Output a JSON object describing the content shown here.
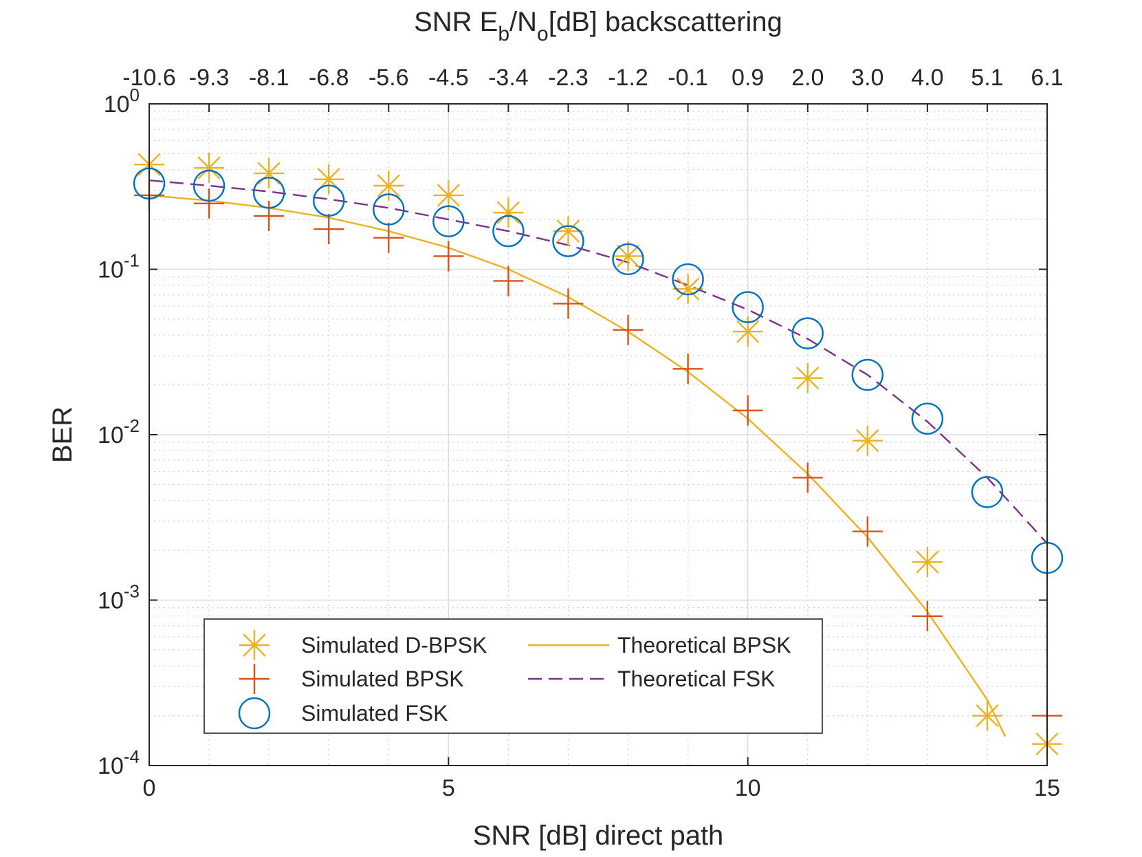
{
  "chart_data": {
    "type": "line",
    "title": "",
    "xlabel": "SNR [dB] direct path",
    "ylabel": "BER",
    "xlim": [
      0,
      15
    ],
    "ylim": [
      0.0001,
      1
    ],
    "yscale": "log",
    "grid": true,
    "legend_position": "bottom-left",
    "x_ticks": [
      0,
      5,
      10,
      15
    ],
    "y_ticks": [
      {
        "value": 1,
        "base": "10",
        "exp": "0"
      },
      {
        "value": 0.1,
        "base": "10",
        "exp": "-1"
      },
      {
        "value": 0.01,
        "base": "10",
        "exp": "-2"
      },
      {
        "value": 0.001,
        "base": "10",
        "exp": "-3"
      },
      {
        "value": 0.0001,
        "base": "10",
        "exp": "-4"
      }
    ],
    "top_axis": {
      "label_parts": [
        "SNR E",
        "b",
        "/N",
        "o",
        "[dB] backscattering"
      ],
      "tick_labels": [
        "-10.6",
        "-9.3",
        "-8.1",
        "-6.8",
        "-5.6",
        "-4.5",
        "-3.4",
        "-2.3",
        "-1.2",
        "-0.1",
        "0.9",
        "2.0",
        "3.0",
        "4.0",
        "5.1",
        "6.1"
      ]
    },
    "colors": {
      "dbpsk": "#EDB120",
      "bpsk": "#D95319",
      "fsk": "#0072BD",
      "theory_bpsk": "#EDB120",
      "theory_fsk": "#7E2F8E"
    },
    "series": [
      {
        "name": "Simulated D-BPSK",
        "marker": "star",
        "color": "#EDB120",
        "x": [
          0,
          1,
          2,
          3,
          4,
          5,
          6,
          7,
          8,
          9,
          10,
          11,
          12,
          13,
          14,
          15
        ],
        "values": [
          0.43,
          0.41,
          0.38,
          0.35,
          0.32,
          0.28,
          0.22,
          0.17,
          0.12,
          0.076,
          0.042,
          0.022,
          0.0092,
          0.0017,
          0.0002,
          0.000135
        ]
      },
      {
        "name": "Simulated BPSK",
        "marker": "plus",
        "color": "#D95319",
        "x": [
          0,
          1,
          2,
          3,
          4,
          5,
          6,
          7,
          8,
          9,
          10,
          11,
          12,
          13,
          15
        ],
        "values": [
          0.28,
          0.25,
          0.21,
          0.175,
          0.155,
          0.12,
          0.085,
          0.062,
          0.043,
          0.025,
          0.014,
          0.0055,
          0.0026,
          0.0008,
          0.0002
        ]
      },
      {
        "name": "Simulated FSK",
        "marker": "circle",
        "color": "#0072BD",
        "x": [
          0,
          1,
          2,
          3,
          4,
          5,
          6,
          7,
          8,
          9,
          10,
          11,
          12,
          13,
          14,
          15
        ],
        "values": [
          0.33,
          0.32,
          0.29,
          0.26,
          0.23,
          0.195,
          0.17,
          0.148,
          0.115,
          0.087,
          0.059,
          0.041,
          0.023,
          0.0125,
          0.0045,
          0.0018
        ]
      },
      {
        "name": "Theoretical BPSK",
        "line": "solid",
        "color": "#EDB120",
        "x": [
          0,
          1,
          2,
          3,
          4,
          5,
          6,
          7,
          8,
          9,
          10,
          11,
          12,
          13,
          14,
          14.3
        ],
        "values": [
          0.28,
          0.26,
          0.235,
          0.205,
          0.17,
          0.135,
          0.1,
          0.068,
          0.042,
          0.024,
          0.0125,
          0.0058,
          0.0024,
          0.00085,
          0.00025,
          0.00015
        ]
      },
      {
        "name": "Theoretical FSK",
        "line": "dashed",
        "color": "#7E2F8E",
        "x": [
          0,
          1,
          2,
          3,
          4,
          5,
          6,
          7,
          8,
          9,
          10,
          11,
          12,
          13,
          14,
          15
        ],
        "values": [
          0.345,
          0.32,
          0.295,
          0.265,
          0.235,
          0.2,
          0.17,
          0.14,
          0.11,
          0.08,
          0.057,
          0.038,
          0.023,
          0.012,
          0.0055,
          0.0022
        ]
      }
    ],
    "legend_order": [
      {
        "series": 0,
        "col": 0,
        "row": 0
      },
      {
        "series": 1,
        "col": 0,
        "row": 1
      },
      {
        "series": 2,
        "col": 0,
        "row": 2
      },
      {
        "series": 3,
        "col": 1,
        "row": 0
      },
      {
        "series": 4,
        "col": 1,
        "row": 1
      }
    ]
  }
}
